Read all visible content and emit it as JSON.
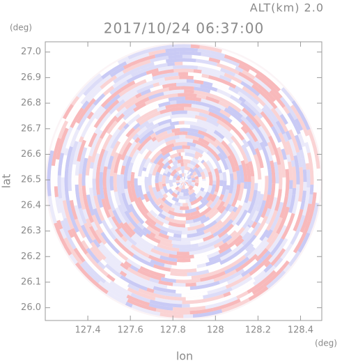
{
  "chart_data": {
    "type": "radar-field",
    "title": "2017/10/24 06:37:00",
    "subtitle": "ALT(km) 2.0",
    "x_label": "lon",
    "y_label": "lat",
    "x_unit": "(deg)",
    "y_unit": "(deg)",
    "xlim": [
      127.2,
      128.5
    ],
    "xticks": [
      127.4,
      127.6,
      127.8,
      128.0,
      128.2,
      128.4
    ],
    "ylim": [
      25.95,
      27.04
    ],
    "yticks": [
      26.0,
      26.1,
      26.2,
      26.3,
      26.4,
      26.5,
      26.6,
      26.7,
      26.8,
      26.9,
      27.0
    ]
  }
}
